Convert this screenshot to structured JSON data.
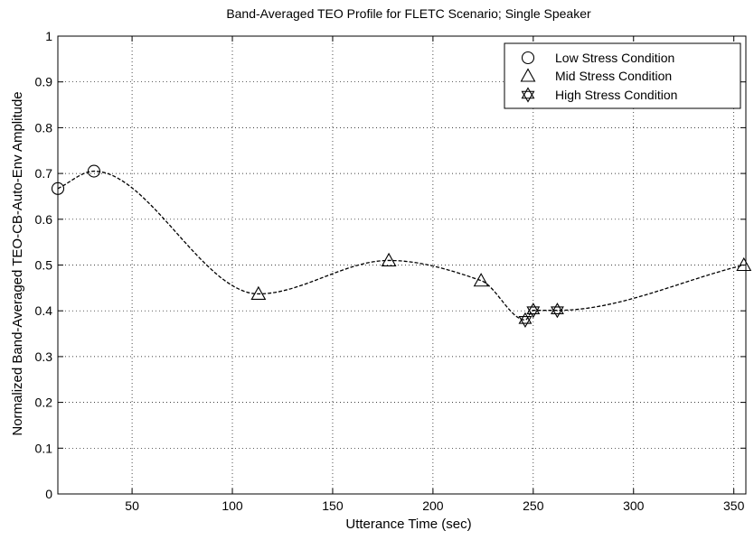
{
  "chart_data": {
    "type": "line",
    "title": "Band-Averaged TEO Profile for FLETC Scenario; Single Speaker",
    "xlabel": "Utterance Time (sec)",
    "ylabel": "Normalized Band-Averaged TEO-CB-Auto-Env Amplitude",
    "xlim": [
      13,
      356
    ],
    "ylim": [
      0,
      1
    ],
    "x_ticks": [
      50,
      100,
      150,
      200,
      250,
      300,
      350
    ],
    "y_ticks": [
      0,
      0.1,
      0.2,
      0.3,
      0.4,
      0.5,
      0.6,
      0.7,
      0.8,
      0.9,
      1
    ],
    "grid": true,
    "legend_position": "top-right",
    "line_style": "dashed",
    "curve": {
      "x": [
        13,
        31,
        113,
        178,
        224,
        246,
        250,
        262,
        355
      ],
      "y": [
        0.667,
        0.705,
        0.437,
        0.51,
        0.466,
        0.38,
        0.401,
        0.401,
        0.5
      ]
    },
    "series": [
      {
        "name": "Low Stress Condition",
        "marker": "circle",
        "x": [
          13,
          31
        ],
        "y": [
          0.667,
          0.705
        ]
      },
      {
        "name": "Mid Stress Condition",
        "marker": "triangle",
        "x": [
          113,
          178,
          224,
          355
        ],
        "y": [
          0.437,
          0.51,
          0.466,
          0.5
        ]
      },
      {
        "name": "High Stress Condition",
        "marker": "hexagram",
        "x": [
          246,
          250,
          262
        ],
        "y": [
          0.38,
          0.401,
          0.401
        ]
      }
    ]
  }
}
